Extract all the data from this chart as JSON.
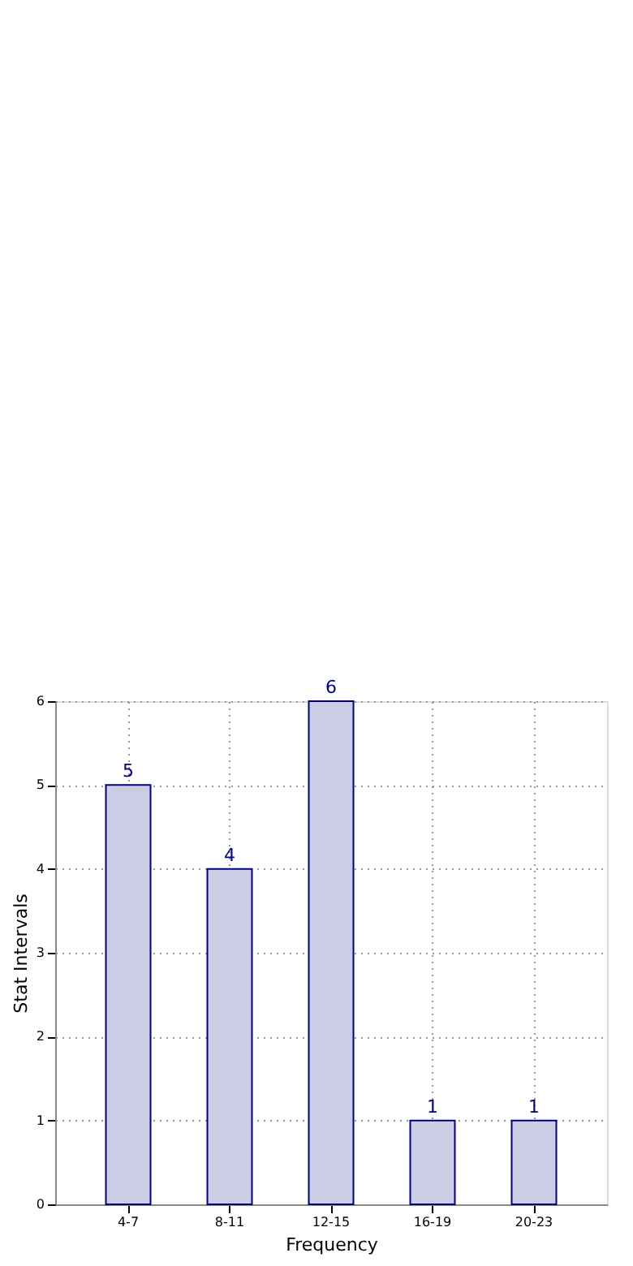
{
  "chart_data": {
    "type": "bar",
    "xlabel": "Frequency",
    "ylabel": "Stat Intervals",
    "categories": [
      "4-7",
      "8-11",
      "12-15",
      "16-19",
      "20-23"
    ],
    "values": [
      5,
      4,
      6,
      1,
      1
    ],
    "color": "#ccccE4",
    "ylim": [
      0,
      6
    ],
    "yticks": [
      0,
      1,
      2,
      3,
      4,
      5,
      6
    ],
    "grid": true,
    "data_labels": true
  }
}
